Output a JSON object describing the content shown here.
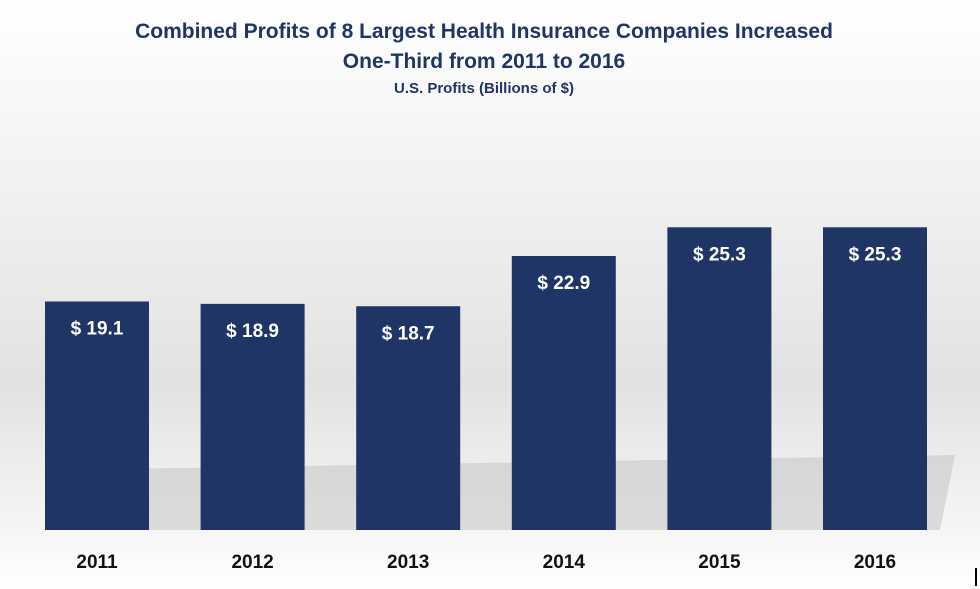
{
  "chart_data": {
    "type": "bar",
    "title": "Combined Profits of 8 Largest Health Insurance Companies Increased",
    "title_line2": "One-Third from 2011 to 2016",
    "subtitle": "U.S. Profits (Billions of $)",
    "categories": [
      "2011",
      "2012",
      "2013",
      "2014",
      "2015",
      "2016"
    ],
    "values": [
      19.1,
      18.9,
      18.7,
      22.9,
      25.3,
      25.3
    ],
    "value_labels": [
      "$ 19.1",
      "$ 18.9",
      "$ 18.7",
      "$ 22.9",
      "$ 25.3",
      "$ 25.3"
    ],
    "xlabel": "",
    "ylabel": "",
    "ylim": [
      0,
      28.5
    ],
    "grid": false,
    "legend": "none",
    "colors": {
      "bar": "#1f3565",
      "title": "#1f3565",
      "value_label": "#ffffff",
      "tick_label": "#111111"
    }
  }
}
